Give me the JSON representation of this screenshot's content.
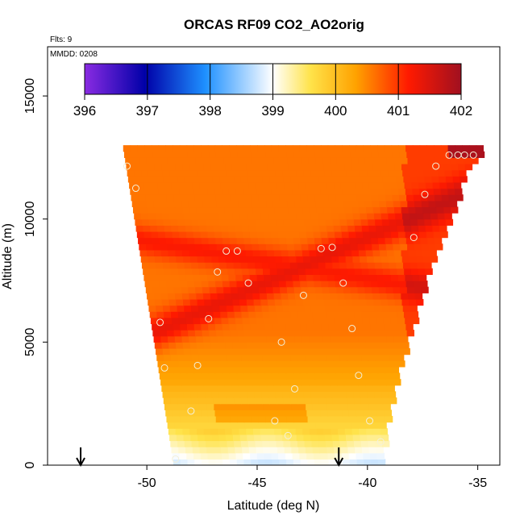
{
  "chart_data": {
    "type": "heatmap",
    "title": "ORCAS RF09 CO2_AO2orig",
    "flts_label": "Flts: 9",
    "mmdd_label": "MMDD: 0208",
    "xlabel": "Latitude (deg N)",
    "ylabel": "Altitude (m)",
    "xlim": [
      -54.5,
      -34.0
    ],
    "ylim": [
      0,
      17000
    ],
    "x_ticks": [
      -50,
      -45,
      -40,
      -35
    ],
    "x_tick_labels": [
      "-50",
      "-45",
      "-40",
      "-35"
    ],
    "y_ticks": [
      0,
      5000,
      10000,
      15000
    ],
    "y_tick_labels": [
      "0",
      "5000",
      "10000",
      "15000"
    ],
    "colorbar": {
      "min": 396,
      "max": 402,
      "ticks": [
        396,
        397,
        398,
        399,
        400,
        401,
        402
      ],
      "tick_labels": [
        "396",
        "397",
        "398",
        "399",
        "400",
        "401",
        "402"
      ]
    },
    "arrows_lat": [
      -53.0,
      -41.3
    ],
    "sample_points": [
      {
        "lat": -36.3,
        "alt": 12600
      },
      {
        "lat": -35.9,
        "alt": 12600
      },
      {
        "lat": -35.6,
        "alt": 12600
      },
      {
        "lat": -35.2,
        "alt": 12600
      },
      {
        "lat": -36.9,
        "alt": 12150
      },
      {
        "lat": -37.4,
        "alt": 11000
      },
      {
        "lat": -37.9,
        "alt": 9250
      },
      {
        "lat": -50.9,
        "alt": 12150
      },
      {
        "lat": -50.5,
        "alt": 11250
      },
      {
        "lat": -46.4,
        "alt": 8700
      },
      {
        "lat": -45.9,
        "alt": 8700
      },
      {
        "lat": -42.1,
        "alt": 8800
      },
      {
        "lat": -41.6,
        "alt": 8850
      },
      {
        "lat": -46.8,
        "alt": 7850
      },
      {
        "lat": -45.4,
        "alt": 7400
      },
      {
        "lat": -41.1,
        "alt": 7400
      },
      {
        "lat": -42.9,
        "alt": 6900
      },
      {
        "lat": -47.2,
        "alt": 5950
      },
      {
        "lat": -49.4,
        "alt": 5800
      },
      {
        "lat": -40.7,
        "alt": 5550
      },
      {
        "lat": -43.9,
        "alt": 5000
      },
      {
        "lat": -47.7,
        "alt": 4050
      },
      {
        "lat": -49.2,
        "alt": 3950
      },
      {
        "lat": -40.4,
        "alt": 3650
      },
      {
        "lat": -43.3,
        "alt": 3100
      },
      {
        "lat": -48.0,
        "alt": 2200
      },
      {
        "lat": -44.2,
        "alt": 1800
      },
      {
        "lat": -39.9,
        "alt": 1800
      },
      {
        "lat": -43.6,
        "alt": 1200
      },
      {
        "lat": -39.4,
        "alt": 950
      },
      {
        "lat": -48.7,
        "alt": 250
      }
    ],
    "field_extent": {
      "alt_min": 0,
      "alt_max": 12900,
      "lat_west_at_bottom": -48.8,
      "lat_west_at_top": -51.1,
      "lat_east_at_bottom": -39.4,
      "lat_east_at_top": -35.0
    }
  }
}
